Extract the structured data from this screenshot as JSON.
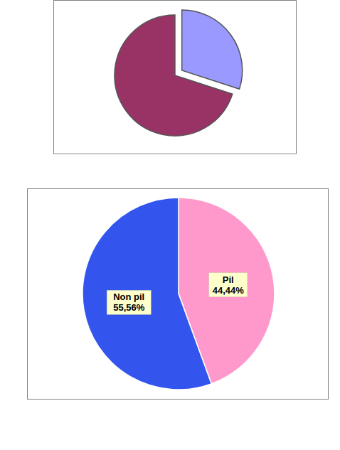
{
  "chart_data": [
    {
      "type": "pie",
      "categories": [
        null,
        null
      ],
      "values": [
        30,
        70
      ],
      "colors": [
        "#9999ff",
        "#993366"
      ],
      "data_labels": false
    },
    {
      "type": "pie",
      "categories": [
        "Pil",
        "Non pil"
      ],
      "values": [
        44.44,
        55.56
      ],
      "value_labels": [
        "44,44%",
        "55,56%"
      ],
      "colors": [
        "#ff99cc",
        "#3355ee"
      ],
      "data_labels": true
    }
  ]
}
